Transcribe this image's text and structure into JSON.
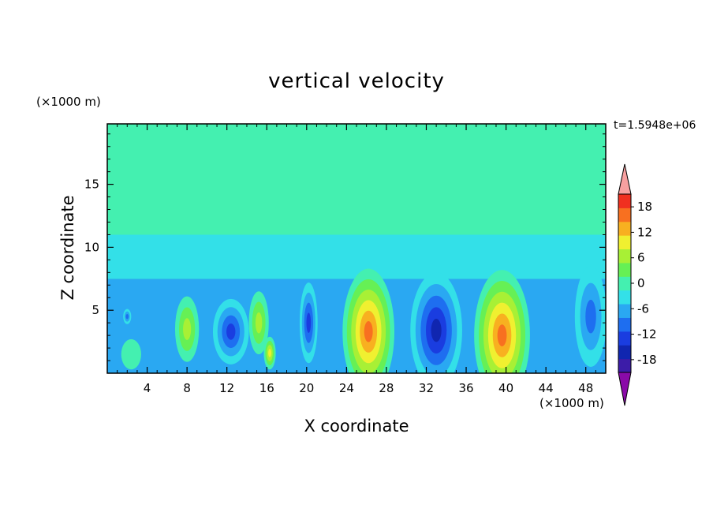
{
  "chart_data": {
    "type": "heatmap",
    "title": "vertical velocity",
    "xlabel": "X coordinate",
    "ylabel": "Z coordinate",
    "x_unit": "(×1000 m)",
    "y_unit": "(×1000 m)",
    "time_label": "t=1.5948e+06",
    "xlim": [
      0,
      50
    ],
    "ylim": [
      0,
      19.8
    ],
    "x_ticks": [
      4,
      8,
      12,
      16,
      20,
      24,
      28,
      32,
      36,
      40,
      44,
      48
    ],
    "y_ticks": [
      5,
      10,
      15
    ],
    "colorbar": {
      "ticks": [
        18,
        12,
        6,
        0,
        -6,
        -12,
        -18
      ],
      "levels": [
        -21,
        -18,
        -15,
        -12,
        -9,
        -6,
        -3,
        0,
        3,
        6,
        9,
        12,
        15,
        18,
        21
      ],
      "colors": [
        "#8a0aa8",
        "#3c1ca8",
        "#1026b0",
        "#1a3de0",
        "#1e6ef0",
        "#2aa8f2",
        "#33e0e8",
        "#44f0b0",
        "#66f055",
        "#a8f035",
        "#f0f030",
        "#f8b020",
        "#f87020",
        "#f03020",
        "#f8a0a0"
      ],
      "over_color": "#f8a0a0",
      "under_color": "#8a0aa8"
    },
    "cells": [
      {
        "x": 8,
        "z": 3.5,
        "value": 9,
        "rx": 1.2,
        "rz": 2.6
      },
      {
        "x": 2.4,
        "z": 1.5,
        "value": 3,
        "rx": 1.0,
        "rz": 1.2
      },
      {
        "x": 2.0,
        "z": 4.5,
        "value": -9,
        "rx": 0.4,
        "rz": 0.6
      },
      {
        "x": 12.4,
        "z": 3.3,
        "value": -12,
        "rx": 1.8,
        "rz": 2.6
      },
      {
        "x": 15.2,
        "z": 4.0,
        "value": 9,
        "rx": 1.0,
        "rz": 2.5
      },
      {
        "x": 16.3,
        "z": 1.6,
        "value": 12,
        "rx": 0.6,
        "rz": 1.3
      },
      {
        "x": 20.2,
        "z": 4.0,
        "value": -12,
        "rx": 0.9,
        "rz": 3.2
      },
      {
        "x": 26.2,
        "z": 3.3,
        "value": 18,
        "rx": 2.6,
        "rz": 5.0
      },
      {
        "x": 33.0,
        "z": 3.4,
        "value": -15,
        "rx": 2.6,
        "rz": 4.6
      },
      {
        "x": 39.6,
        "z": 3.0,
        "value": 18,
        "rx": 2.8,
        "rz": 5.2
      },
      {
        "x": 48.5,
        "z": 4.5,
        "value": -9,
        "rx": 1.6,
        "rz": 4.0
      }
    ]
  }
}
